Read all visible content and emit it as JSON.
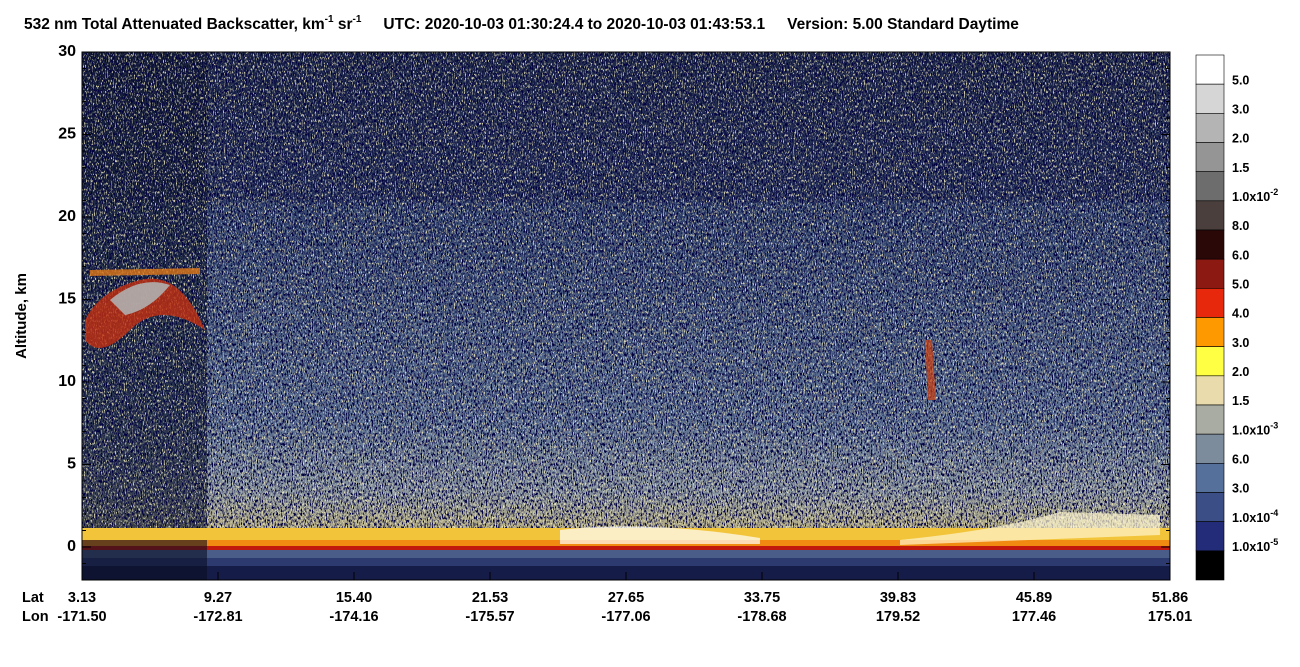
{
  "chart_data": {
    "type": "heatmap",
    "title_parts": [
      "532 nm Total Attenuated Backscatter, km",
      "-1",
      " sr",
      "-1",
      "UTC:  2020-10-03 01:30:24.4  to  2020-10-03 01:43:53.1",
      "Version: 5.00  Standard  Daytime"
    ],
    "y_label": "Altitude, km",
    "ylim": [
      -2,
      30
    ],
    "yticks": [
      0,
      5,
      10,
      15,
      20,
      25,
      30
    ],
    "x_row_labels": [
      "Lat",
      "Lon"
    ],
    "xticks": [
      {
        "value": 3.13,
        "label": "3.13"
      },
      {
        "value": 9.27,
        "label": "9.27"
      },
      {
        "value": 15.4,
        "label": "15.40"
      },
      {
        "value": 21.53,
        "label": "21.53"
      },
      {
        "value": 27.65,
        "label": "27.65"
      },
      {
        "value": 33.75,
        "label": "33.75"
      },
      {
        "value": 39.83,
        "label": "39.83"
      },
      {
        "value": 45.89,
        "label": "45.89"
      },
      {
        "value": 51.86,
        "label": "51.86"
      }
    ],
    "lon_ticks": [
      {
        "value": -171.5,
        "label": "-171.50"
      },
      {
        "value": -172.81,
        "label": "-172.81"
      },
      {
        "value": -174.16,
        "label": "-174.16"
      },
      {
        "value": -175.57,
        "label": "-175.57"
      },
      {
        "value": -177.06,
        "label": "-177.06"
      },
      {
        "value": -178.68,
        "label": "-178.68"
      },
      {
        "value": 179.52,
        "label": "179.52"
      },
      {
        "value": 177.46,
        "label": "177.46"
      },
      {
        "value": 175.01,
        "label": "175.01"
      }
    ],
    "colorbar": {
      "colors": [
        "#ffffff",
        "#d6d6d6",
        "#b4b4b4",
        "#959595",
        "#6d6d6d",
        "#4a3f3c",
        "#2a0808",
        "#8c1a12",
        "#e8280c",
        "#ff9900",
        "#ffff44",
        "#e9dbab",
        "#a9aca2",
        "#7c8c9c",
        "#55709a",
        "#3b4f86",
        "#222c78",
        "#000000"
      ],
      "labels": [
        {
          "base": "5.0"
        },
        {
          "base": "3.0"
        },
        {
          "base": "2.0"
        },
        {
          "base": "1.5"
        },
        {
          "base": "1.0x10",
          "exp": "-2"
        },
        {
          "base": "8.0"
        },
        {
          "base": "6.0"
        },
        {
          "base": "5.0"
        },
        {
          "base": "4.0"
        },
        {
          "base": "3.0"
        },
        {
          "base": "2.0"
        },
        {
          "base": "1.5"
        },
        {
          "base": "1.0x10",
          "exp": "-3"
        },
        {
          "base": "6.0"
        },
        {
          "base": "3.0"
        },
        {
          "base": "1.0x10",
          "exp": "-4"
        },
        {
          "base": "1.0x10",
          "exp": "-5"
        }
      ]
    }
  }
}
